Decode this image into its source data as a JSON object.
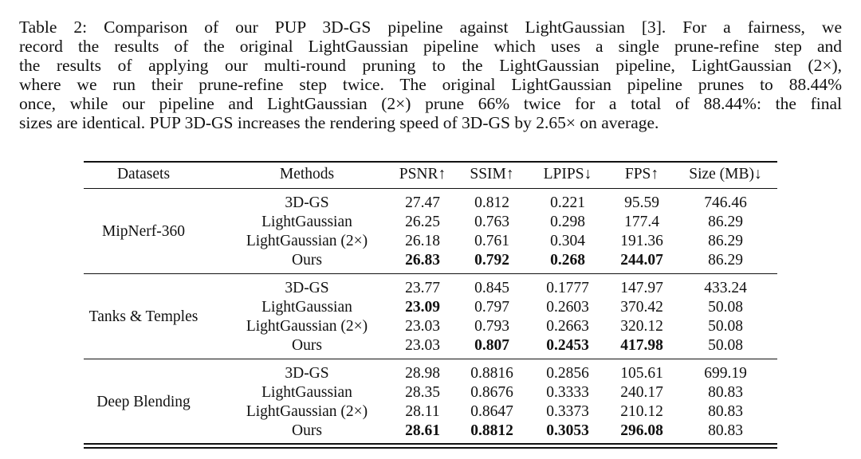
{
  "caption": {
    "lines": [
      "Table 2: Comparison of our PUP 3D-GS pipeline against LightGaussian [3]. For a fairness, we",
      "record the results of the original LightGaussian pipeline which uses a single prune-refine step and",
      "the results of applying our multi-round pruning to the LightGaussian pipeline, LightGaussian (2×),",
      "where we run their prune-refine step twice. The original LightGaussian pipeline prunes to 88.44%",
      "once, while our pipeline and LightGaussian (2×) prune 66% twice for a total of 88.44%: the final",
      "sizes are identical. PUP 3D-GS increases the rendering speed of 3D-GS by 2.65× on average."
    ]
  },
  "table": {
    "headers": [
      "Datasets",
      "Methods",
      "PSNR↑",
      "SSIM↑",
      "LPIPS↓",
      "FPS↑",
      "Size (MB)↓"
    ],
    "groups": [
      {
        "dataset": "MipNerf-360",
        "rows": [
          {
            "method": "3D-GS",
            "values": [
              "27.47",
              "0.812",
              "0.221",
              "95.59",
              "746.46"
            ],
            "bold": [
              false,
              false,
              false,
              false,
              false
            ]
          },
          {
            "method": "LightGaussian",
            "values": [
              "26.25",
              "0.763",
              "0.298",
              "177.4",
              "86.29"
            ],
            "bold": [
              false,
              false,
              false,
              false,
              false
            ]
          },
          {
            "method": "LightGaussian (2×)",
            "values": [
              "26.18",
              "0.761",
              "0.304",
              "191.36",
              "86.29"
            ],
            "bold": [
              false,
              false,
              false,
              false,
              false
            ]
          },
          {
            "method": "Ours",
            "values": [
              "26.83",
              "0.792",
              "0.268",
              "244.07",
              "86.29"
            ],
            "bold": [
              true,
              true,
              true,
              true,
              false
            ]
          }
        ]
      },
      {
        "dataset": "Tanks & Temples",
        "rows": [
          {
            "method": "3D-GS",
            "values": [
              "23.77",
              "0.845",
              "0.1777",
              "147.97",
              "433.24"
            ],
            "bold": [
              false,
              false,
              false,
              false,
              false
            ]
          },
          {
            "method": "LightGaussian",
            "values": [
              "23.09",
              "0.797",
              "0.2603",
              "370.42",
              "50.08"
            ],
            "bold": [
              true,
              false,
              false,
              false,
              false
            ]
          },
          {
            "method": "LightGaussian (2×)",
            "values": [
              "23.03",
              "0.793",
              "0.2663",
              "320.12",
              "50.08"
            ],
            "bold": [
              false,
              false,
              false,
              false,
              false
            ]
          },
          {
            "method": "Ours",
            "values": [
              "23.03",
              "0.807",
              "0.2453",
              "417.98",
              "50.08"
            ],
            "bold": [
              false,
              true,
              true,
              true,
              false
            ]
          }
        ]
      },
      {
        "dataset": "Deep Blending",
        "rows": [
          {
            "method": "3D-GS",
            "values": [
              "28.98",
              "0.8816",
              "0.2856",
              "105.61",
              "699.19"
            ],
            "bold": [
              false,
              false,
              false,
              false,
              false
            ]
          },
          {
            "method": "LightGaussian",
            "values": [
              "28.35",
              "0.8676",
              "0.3333",
              "240.17",
              "80.83"
            ],
            "bold": [
              false,
              false,
              false,
              false,
              false
            ]
          },
          {
            "method": "LightGaussian (2×)",
            "values": [
              "28.11",
              "0.8647",
              "0.3373",
              "210.12",
              "80.83"
            ],
            "bold": [
              false,
              false,
              false,
              false,
              false
            ]
          },
          {
            "method": "Ours",
            "values": [
              "28.61",
              "0.8812",
              "0.3053",
              "296.08",
              "80.83"
            ],
            "bold": [
              true,
              true,
              true,
              true,
              false
            ]
          }
        ]
      }
    ]
  }
}
